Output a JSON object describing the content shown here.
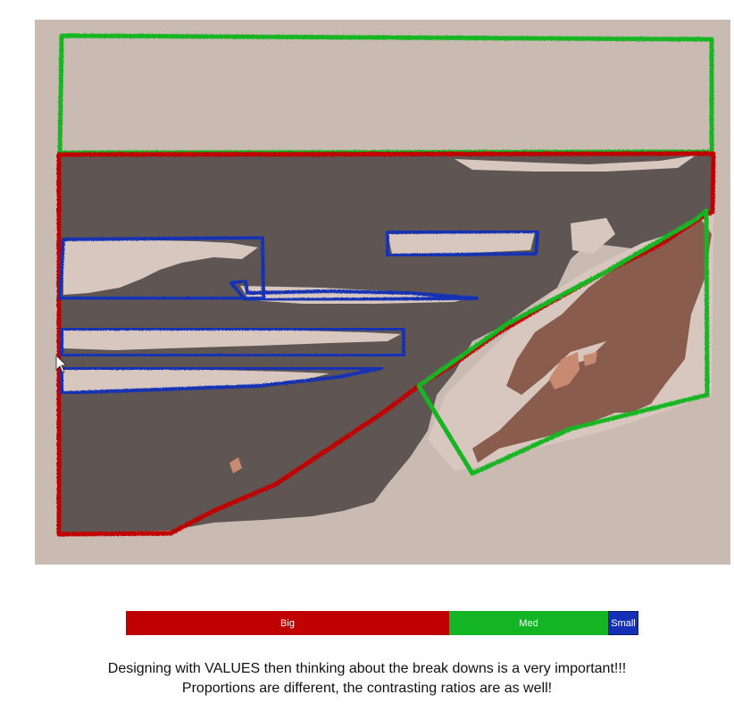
{
  "colors": {
    "background": "#c9bab2",
    "dark_shape": "#5f5654",
    "light_shape": "#d7c7bf",
    "brown_shape": "#8a5c4d",
    "salmon_accent": "#c98a72",
    "big": "#c00000",
    "med": "#13b524",
    "small": "#1530b4"
  },
  "legend": {
    "segments": [
      {
        "label": "Big",
        "fraction": 0.63,
        "color": "#c00000"
      },
      {
        "label": "Med",
        "fraction": 0.31,
        "color": "#13b524"
      },
      {
        "label": "Small",
        "fraction": 0.06,
        "color": "#1530b4"
      }
    ]
  },
  "caption": {
    "line1": "Designing with VALUES then thinking about the break downs is a very important!!!",
    "line2": "Proportions are different, the contrasting ratios are as well!"
  }
}
